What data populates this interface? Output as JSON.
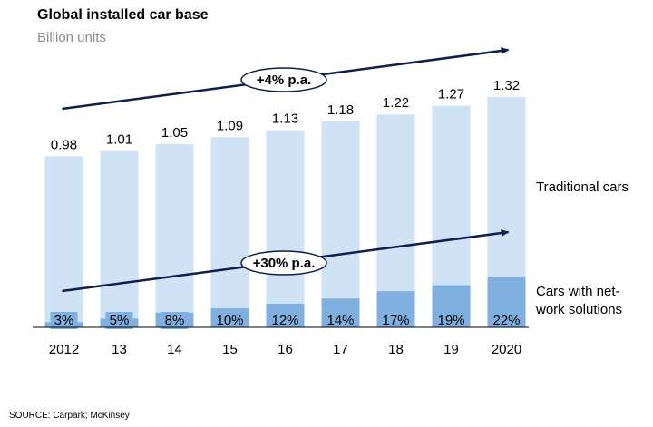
{
  "title": "Global installed car base",
  "subtitle": "Billion units",
  "source": "SOURCE: Carpark; McKinsey",
  "colors": {
    "traditional": "#cfe2f6",
    "network": "#7fb0df",
    "arrow": "#0d1f4a",
    "callout_border": "#0d1f4a"
  },
  "chart_data": {
    "type": "bar",
    "stacked": true,
    "categories": [
      "2012",
      "13",
      "14",
      "15",
      "16",
      "17",
      "18",
      "19",
      "2020"
    ],
    "totals": [
      0.98,
      1.01,
      1.05,
      1.09,
      1.13,
      1.18,
      1.22,
      1.27,
      1.32
    ],
    "total_labels": [
      "0.98",
      "1.01",
      "1.05",
      "1.09",
      "1.13",
      "1.18",
      "1.22",
      "1.27",
      "1.32"
    ],
    "series": [
      {
        "name": "Cars with net-work solutions",
        "share_percent": [
          3,
          5,
          8,
          10,
          12,
          14,
          17,
          19,
          22
        ]
      },
      {
        "name": "Traditional cars",
        "share_percent": [
          97,
          95,
          92,
          90,
          88,
          86,
          83,
          81,
          78
        ]
      }
    ],
    "network_labels": [
      "3%",
      "5%",
      "8%",
      "10%",
      "12%",
      "14%",
      "17%",
      "19%",
      "22%"
    ],
    "annotations": [
      {
        "text": "+4% p.a.",
        "applies_to": "total"
      },
      {
        "text": "+30% p.a.",
        "applies_to": "Cars with net-work solutions"
      }
    ],
    "ylim": [
      0,
      1.32
    ]
  },
  "legend": {
    "traditional": "Traditional cars",
    "network_line1": "Cars with net-",
    "network_line2": "work solutions"
  }
}
